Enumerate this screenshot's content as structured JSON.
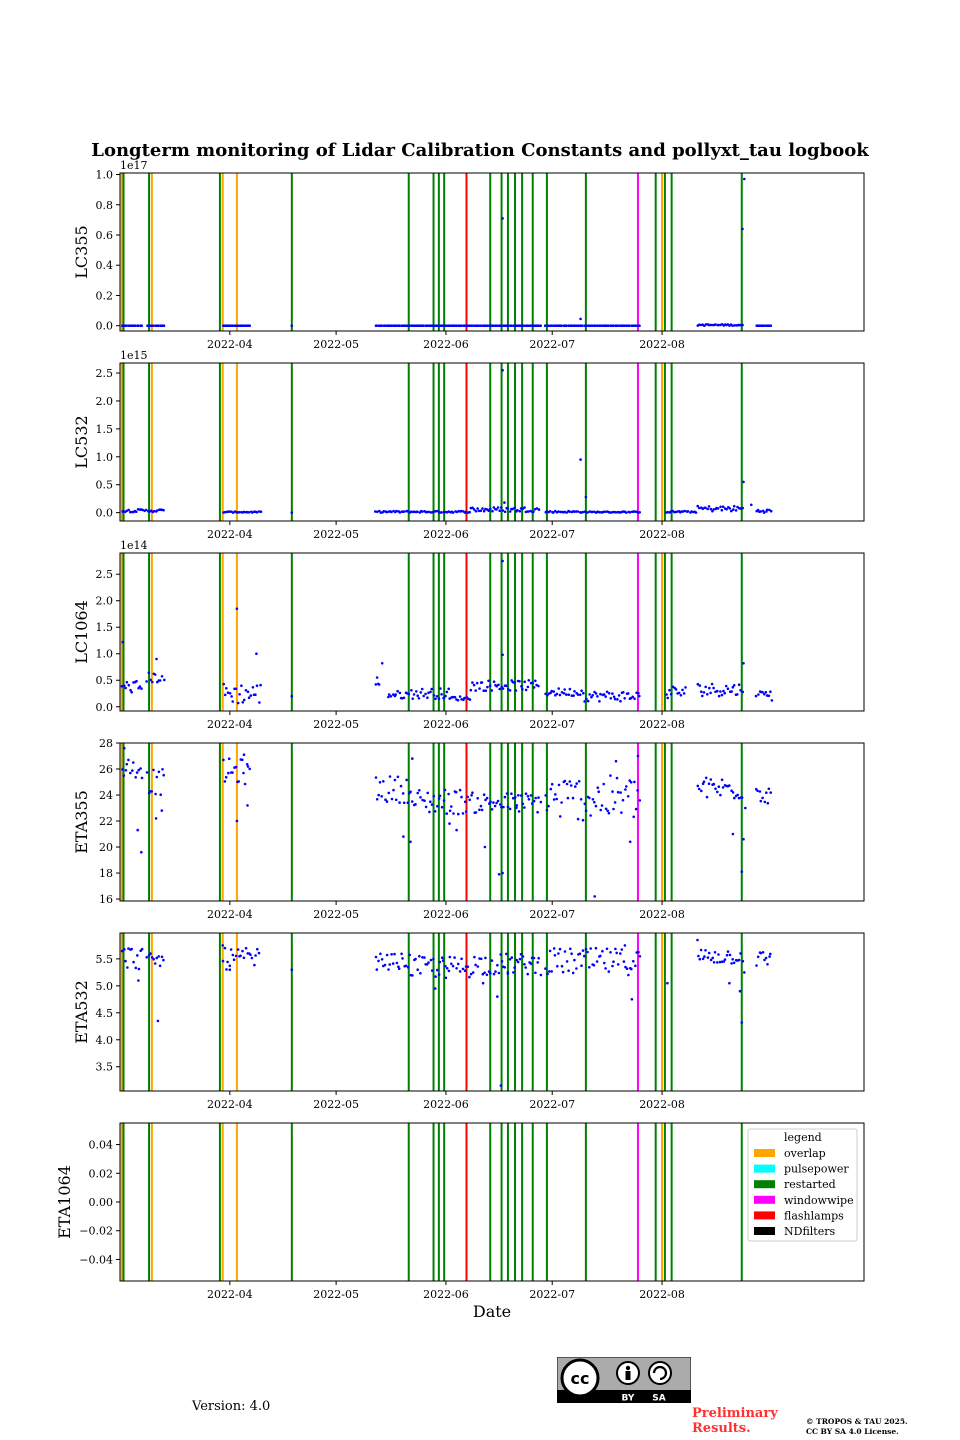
{
  "title": "Longterm monitoring of Lidar Calibration Constants and pollyxt_tau logbook",
  "version": "Version: 4.0",
  "preliminary": [
    "Preliminary",
    "Results."
  ],
  "copyright": [
    "© TROPOS & TAU 2025.",
    "CC BY SA 4.0 License."
  ],
  "badge": {
    "cc": "cc",
    "by": "BY",
    "sa": "SA"
  },
  "colors": {
    "overlap": "#ffa500",
    "pulsepower": "#00ffff",
    "restarted": "#008000",
    "windowwipe": "#ff00ff",
    "flashlamps": "#ff0000",
    "NDfilters": "#000000",
    "points": "#0000ff"
  },
  "chart_data": {
    "type": "scatter",
    "xlabel": "Date",
    "x_tick_labels": [
      "2022-04",
      "2022-05",
      "2022-06",
      "2022-07",
      "2022-08"
    ],
    "x_ticks_day": [
      31,
      61,
      92,
      122,
      153
    ],
    "x_range_day": [
      0,
      210
    ],
    "events": {
      "overlap": [
        0.5,
        9.0,
        29.0,
        33.0,
        153.0
      ],
      "restarted": [
        1.0,
        8.2,
        28.2,
        48.5,
        81.5,
        88.5,
        90.0,
        91.5,
        104.5,
        107.7,
        109.5,
        111.5,
        113.5,
        116.5,
        120.5,
        131.5,
        151.2,
        153.8,
        155.7,
        175.5
      ],
      "flashlamps": [
        97.8
      ],
      "windowwipe": [
        146.2
      ],
      "pulsepower": [],
      "NDfilters": []
    },
    "legend": {
      "title": "legend",
      "entries": [
        "overlap",
        "pulsepower",
        "restarted",
        "windowwipe",
        "flashlamps",
        "NDfilters"
      ]
    },
    "panels": [
      {
        "ylabel": "LC355",
        "scale_label": "1e17",
        "ylim": [
          -0.035,
          1.01
        ],
        "yticks": [
          0.0,
          0.2,
          0.4,
          0.6,
          0.8,
          1.0
        ],
        "tick_labels": [
          "0.0",
          "0.2",
          "0.4",
          "0.6",
          "0.8",
          "1.0"
        ],
        "ranges": [
          [
            0.5,
            6.5,
            0.0,
            0.0
          ],
          [
            7.5,
            12.7,
            0.0,
            0.0
          ],
          [
            29.0,
            37.0,
            0.0,
            0.0
          ],
          [
            72.0,
            82.0,
            0.0,
            0.0
          ],
          [
            82.0,
            99.0,
            0.0,
            0.0
          ],
          [
            99.0,
            119.0,
            0.0,
            0.0
          ],
          [
            120.0,
            147.0,
            0.0,
            0.0
          ],
          [
            163.0,
            176.0,
            0.0,
            0.01
          ],
          [
            179.5,
            184.0,
            0.0,
            0.0
          ]
        ],
        "points": [
          [
            108,
            0.71
          ],
          [
            130,
            0.045
          ],
          [
            175.7,
            0.64
          ],
          [
            176.2,
            0.97
          ],
          [
            48.5,
            0.0
          ]
        ]
      },
      {
        "ylabel": "LC532",
        "scale_label": "1e15",
        "ylim": [
          -0.15,
          2.68
        ],
        "yticks": [
          0.0,
          0.5,
          1.0,
          1.5,
          2.0,
          2.5
        ],
        "tick_labels": [
          "0.0",
          "0.5",
          "1.0",
          "1.5",
          "2.0",
          "2.5"
        ],
        "ranges": [
          [
            0.5,
            12.7,
            0.01,
            0.06
          ],
          [
            29.0,
            40.0,
            0.0,
            0.02
          ],
          [
            72.0,
            99.0,
            0.0,
            0.03
          ],
          [
            99.0,
            118.5,
            0.01,
            0.1
          ],
          [
            120.0,
            131.0,
            0.0,
            0.03
          ],
          [
            131.0,
            147.0,
            0.0,
            0.02
          ],
          [
            154.0,
            163.0,
            0.0,
            0.03
          ],
          [
            163.0,
            176.0,
            0.02,
            0.12
          ],
          [
            179.5,
            184.0,
            0.0,
            0.06
          ]
        ],
        "points": [
          [
            130.0,
            0.95
          ],
          [
            108.0,
            2.55
          ],
          [
            176.0,
            0.55
          ],
          [
            108.5,
            0.18
          ],
          [
            178.2,
            0.14
          ],
          [
            131.5,
            0.28
          ],
          [
            48.5,
            0.0
          ]
        ]
      },
      {
        "ylabel": "LC1064",
        "scale_label": "1e14",
        "ylim": [
          -0.08,
          2.9
        ],
        "yticks": [
          0.0,
          0.5,
          1.0,
          1.5,
          2.0,
          2.5
        ],
        "tick_labels": [
          "0.0",
          "0.5",
          "1.0",
          "1.5",
          "2.0",
          "2.5"
        ],
        "ranges": [
          [
            0.5,
            6.5,
            0.25,
            0.5
          ],
          [
            7.5,
            12.7,
            0.45,
            0.65
          ],
          [
            29.0,
            40.0,
            0.05,
            0.45
          ],
          [
            72.0,
            73.5,
            0.35,
            0.6
          ],
          [
            75.5,
            82.0,
            0.15,
            0.3
          ],
          [
            82.0,
            93.0,
            0.15,
            0.35
          ],
          [
            93.0,
            99.0,
            0.12,
            0.2
          ],
          [
            99.0,
            118.5,
            0.3,
            0.5
          ],
          [
            120.0,
            131.0,
            0.2,
            0.35
          ],
          [
            131.0,
            147.0,
            0.1,
            0.3
          ],
          [
            154.0,
            160.0,
            0.15,
            0.4
          ],
          [
            163.0,
            176.0,
            0.2,
            0.45
          ],
          [
            179.5,
            184.0,
            0.2,
            0.3
          ]
        ],
        "points": [
          [
            0.8,
            1.22
          ],
          [
            10.3,
            0.9
          ],
          [
            33.0,
            1.85
          ],
          [
            38.5,
            1.0
          ],
          [
            74.0,
            0.82
          ],
          [
            108.0,
            2.75
          ],
          [
            108.0,
            0.98
          ],
          [
            176.0,
            0.82
          ],
          [
            48.5,
            0.2
          ],
          [
            184.0,
            0.12
          ]
        ]
      },
      {
        "ylabel": "ETA355",
        "scale_label": "",
        "ylim": [
          15.85,
          28.0
        ],
        "yticks": [
          16,
          18,
          20,
          22,
          24,
          26,
          28
        ],
        "tick_labels": [
          "16",
          "18",
          "20",
          "22",
          "24",
          "26",
          "28"
        ],
        "ranges": [
          [
            0.5,
            6.5,
            25.3,
            26.9
          ],
          [
            7.5,
            12.7,
            24.0,
            26.0
          ],
          [
            29.0,
            37.0,
            24.8,
            26.8
          ],
          [
            72.0,
            82.0,
            23.4,
            25.5
          ],
          [
            82.0,
            99.0,
            22.5,
            24.5
          ],
          [
            99.0,
            119.0,
            22.6,
            24.2
          ],
          [
            120.0,
            147.0,
            22.0,
            25.5
          ],
          [
            163.0,
            176.0,
            23.6,
            25.4
          ],
          [
            179.5,
            184.0,
            23.3,
            25.2
          ]
        ],
        "points": [
          [
            1.2,
            27.6
          ],
          [
            6.0,
            19.6
          ],
          [
            5.0,
            21.3
          ],
          [
            10.2,
            22.2
          ],
          [
            11.8,
            22.8
          ],
          [
            33.0,
            22.0
          ],
          [
            36.0,
            23.2
          ],
          [
            35.0,
            27.1
          ],
          [
            80.0,
            20.8
          ],
          [
            82.0,
            20.4
          ],
          [
            82.5,
            26.8
          ],
          [
            93.0,
            21.8
          ],
          [
            95.0,
            21.3
          ],
          [
            103.0,
            20.0
          ],
          [
            112.0,
            23.2
          ],
          [
            108.0,
            18.0
          ],
          [
            107.0,
            17.9
          ],
          [
            134.0,
            16.2
          ],
          [
            140.0,
            26.6
          ],
          [
            144.0,
            20.4
          ],
          [
            146.2,
            27.0
          ],
          [
            173.0,
            21.0
          ],
          [
            175.5,
            18.1
          ],
          [
            176.0,
            20.6
          ],
          [
            176.5,
            23.0
          ]
        ]
      },
      {
        "ylabel": "ETA532",
        "scale_label": "",
        "ylim": [
          3.05,
          5.98
        ],
        "yticks": [
          3.5,
          4.0,
          4.5,
          5.0,
          5.5
        ],
        "tick_labels": [
          "3.5",
          "4.0",
          "4.5",
          "5.0",
          "5.5"
        ],
        "ranges": [
          [
            0.5,
            6.5,
            5.3,
            5.75
          ],
          [
            7.5,
            12.7,
            5.35,
            5.6
          ],
          [
            29.0,
            39.5,
            5.3,
            5.7
          ],
          [
            72.0,
            82.0,
            5.3,
            5.6
          ],
          [
            82.0,
            99.0,
            5.15,
            5.55
          ],
          [
            99.0,
            119.0,
            5.2,
            5.6
          ],
          [
            120.0,
            147.0,
            5.2,
            5.7
          ],
          [
            163.0,
            176.0,
            5.4,
            5.7
          ],
          [
            179.5,
            184.0,
            5.35,
            5.65
          ]
        ],
        "points": [
          [
            5.2,
            5.1
          ],
          [
            10.7,
            4.35
          ],
          [
            29.0,
            5.75
          ],
          [
            31.0,
            5.3
          ],
          [
            48.5,
            5.3
          ],
          [
            89.0,
            4.95
          ],
          [
            92.0,
            5.15
          ],
          [
            102.5,
            5.05
          ],
          [
            106.5,
            4.8
          ],
          [
            107.5,
            3.15
          ],
          [
            109.5,
            5.25
          ],
          [
            144.5,
            4.75
          ],
          [
            142.5,
            5.75
          ],
          [
            154.5,
            5.05
          ],
          [
            163.0,
            5.85
          ],
          [
            172.0,
            5.05
          ],
          [
            175.0,
            4.9
          ],
          [
            175.5,
            4.32
          ],
          [
            176.2,
            5.25
          ]
        ]
      },
      {
        "ylabel": "ETA1064",
        "scale_label": "",
        "ylim": [
          -0.055,
          0.055
        ],
        "yticks": [
          -0.04,
          -0.02,
          0.0,
          0.02,
          0.04
        ],
        "tick_labels": [
          "−0.04",
          "−0.02",
          "0.00",
          "0.02",
          "0.04"
        ],
        "ranges": [],
        "points": []
      }
    ]
  }
}
